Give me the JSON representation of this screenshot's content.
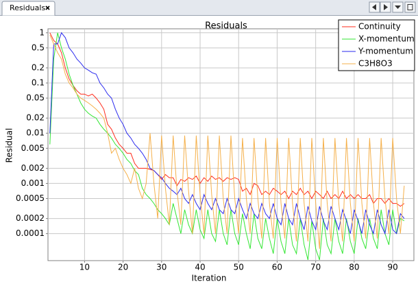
{
  "tab": {
    "label": "Residuals"
  },
  "chart_data": {
    "type": "line",
    "title": "Residuals",
    "x_label": "Iteration",
    "y_label": "Residual",
    "log_y": true,
    "grid": true,
    "legend": "top-right",
    "xlim": [
      0.5,
      95.5
    ],
    "xticks": [
      10,
      20,
      30,
      40,
      50,
      60,
      70,
      80,
      90
    ],
    "ylim": [
      2.9e-05,
      1.2
    ],
    "yticks": [
      1,
      0.5,
      0.2,
      0.1,
      0.05,
      0.02,
      0.01,
      0.005,
      0.002,
      0.001,
      0.0005,
      0.0002,
      0.0001
    ],
    "x": [
      1,
      2,
      3,
      4,
      5,
      6,
      7,
      8,
      9,
      10,
      11,
      12,
      13,
      14,
      15,
      16,
      17,
      18,
      19,
      20,
      21,
      22,
      23,
      24,
      25,
      26,
      27,
      28,
      29,
      30,
      31,
      32,
      33,
      34,
      35,
      36,
      37,
      38,
      39,
      40,
      41,
      42,
      43,
      44,
      45,
      46,
      47,
      48,
      49,
      50,
      51,
      52,
      53,
      54,
      55,
      56,
      57,
      58,
      59,
      60,
      61,
      62,
      63,
      64,
      65,
      66,
      67,
      68,
      69,
      70,
      71,
      72,
      73,
      74,
      75,
      76,
      77,
      78,
      79,
      80,
      81,
      82,
      83,
      84,
      85,
      86,
      87,
      88,
      89,
      90,
      91,
      92,
      93
    ],
    "series": [
      {
        "name": "Continuity",
        "color": "#ff2a1a",
        "values": [
          1,
          0.7,
          0.6,
          0.4,
          0.2,
          0.12,
          0.09,
          0.07,
          0.06,
          0.06,
          0.055,
          0.06,
          0.05,
          0.04,
          0.03,
          0.015,
          0.012,
          0.008,
          0.006,
          0.005,
          0.004,
          0.004,
          0.0025,
          0.002,
          0.002,
          0.002,
          0.0019,
          0.0018,
          0.0015,
          0.0012,
          0.0015,
          0.0013,
          0.0013,
          0.0009,
          0.0012,
          0.0011,
          0.0013,
          0.0012,
          0.0014,
          0.001,
          0.0013,
          0.0011,
          0.0014,
          0.0012,
          0.0013,
          0.0011,
          0.0013,
          0.0012,
          0.0013,
          0.0012,
          0.0007,
          0.0008,
          0.0006,
          0.001,
          0.0009,
          0.0006,
          0.0007,
          0.0006,
          0.0008,
          0.0007,
          0.0006,
          0.0007,
          0.0005,
          0.0007,
          0.0006,
          0.0008,
          0.0006,
          0.0007,
          0.0005,
          0.0007,
          0.0006,
          0.0005,
          0.0007,
          0.0005,
          0.0006,
          0.0005,
          0.0007,
          0.0005,
          0.0006,
          0.0005,
          0.0006,
          0.0005,
          0.0005,
          0.0006,
          0.0004,
          0.0005,
          0.0005,
          0.0004,
          0.0005,
          0.0004,
          0.0004,
          0.00035,
          0.0004
        ]
      },
      {
        "name": "X-momentum",
        "color": "#33e633",
        "values": [
          0.006,
          0.3,
          1,
          0.5,
          0.3,
          0.15,
          0.09,
          0.06,
          0.04,
          0.03,
          0.025,
          0.022,
          0.02,
          0.015,
          0.012,
          0.01,
          0.008,
          0.006,
          0.005,
          0.004,
          0.003,
          0.0025,
          0.0018,
          0.0015,
          0.0008,
          0.0006,
          0.0005,
          0.0004,
          0.0003,
          0.00025,
          0.0002,
          0.00015,
          0.0004,
          0.0002,
          0.0001,
          0.0003,
          0.00015,
          0.0001,
          0.0003,
          0.00012,
          8e-05,
          0.0003,
          0.0001,
          7e-05,
          0.0003,
          0.0001,
          6e-05,
          0.0003,
          0.0001,
          6e-05,
          0.00025,
          0.0001,
          5e-05,
          0.00025,
          8e-05,
          5e-05,
          0.0002,
          8e-05,
          4e-05,
          0.0002,
          7e-05,
          4e-05,
          0.0002,
          6e-05,
          4e-05,
          0.0002,
          6e-05,
          3e-05,
          0.00018,
          5e-05,
          3e-05,
          0.0002,
          6e-05,
          4e-05,
          0.0002,
          7e-05,
          4e-05,
          0.0002,
          7e-05,
          4e-05,
          0.0002,
          8e-05,
          5e-05,
          0.0002,
          8e-05,
          5e-05,
          0.0003,
          0.0001,
          6e-05,
          0.0003,
          0.0001,
          0.0002,
          0.00018
        ]
      },
      {
        "name": "Y-momentum",
        "color": "#2a2aee",
        "values": [
          0.01,
          0.6,
          0.6,
          1,
          0.8,
          0.5,
          0.4,
          0.3,
          0.25,
          0.2,
          0.18,
          0.16,
          0.15,
          0.1,
          0.08,
          0.06,
          0.05,
          0.03,
          0.02,
          0.015,
          0.01,
          0.008,
          0.006,
          0.005,
          0.004,
          0.003,
          0.002,
          0.0018,
          0.0015,
          0.0013,
          0.001,
          0.0008,
          0.0007,
          0.0006,
          0.0008,
          0.0005,
          0.0004,
          0.0006,
          0.0004,
          0.0003,
          0.0006,
          0.0004,
          0.0003,
          0.0005,
          0.0003,
          0.00025,
          0.0005,
          0.0003,
          0.00025,
          0.0005,
          0.0003,
          0.0002,
          0.0004,
          0.00025,
          0.0002,
          0.0004,
          0.00025,
          0.0002,
          0.0004,
          0.0002,
          0.00015,
          0.0004,
          0.0002,
          0.00015,
          0.0004,
          0.0002,
          0.00012,
          0.00035,
          0.00018,
          0.00012,
          0.00035,
          0.00018,
          0.00012,
          0.00035,
          0.0002,
          0.00012,
          0.0003,
          0.00018,
          0.0001,
          0.0003,
          0.00018,
          0.0001,
          0.0003,
          0.00015,
          0.0001,
          0.0003,
          0.00015,
          0.0001,
          0.0003,
          0.00012,
          0.0001,
          0.00025,
          0.0002
        ]
      },
      {
        "name": "C3H8O3",
        "color": "#f5b04a",
        "values": [
          0.9,
          0.6,
          0.4,
          0.3,
          0.15,
          0.1,
          0.08,
          0.06,
          0.05,
          0.045,
          0.04,
          0.035,
          0.03,
          0.025,
          0.02,
          0.01,
          0.004,
          0.005,
          0.003,
          0.002,
          0.0015,
          0.001,
          0.002,
          0.0008,
          0.0005,
          0.001,
          0.01,
          0.001,
          0.0002,
          0.009,
          0.0008,
          0.00015,
          0.009,
          0.0007,
          0.00015,
          0.009,
          0.0007,
          0.0001,
          0.009,
          0.0006,
          0.0001,
          0.009,
          0.0006,
          0.0001,
          0.009,
          0.0005,
          0.0001,
          0.009,
          0.0005,
          0.0001,
          0.008,
          0.0005,
          0.0001,
          0.008,
          0.0005,
          8e-05,
          0.008,
          0.0004,
          8e-05,
          0.008,
          0.0004,
          8e-05,
          0.008,
          0.0004,
          7e-05,
          0.008,
          0.0004,
          7e-05,
          0.008,
          0.0004,
          5e-05,
          0.008,
          0.0004,
          7e-05,
          0.008,
          0.0004,
          7e-05,
          0.008,
          0.0004,
          7e-05,
          0.008,
          0.0004,
          8e-05,
          0.008,
          0.0004,
          8e-05,
          0.008,
          0.0005,
          0.0001,
          0.008,
          0.0005,
          0.0001,
          0.0009
        ]
      }
    ]
  }
}
